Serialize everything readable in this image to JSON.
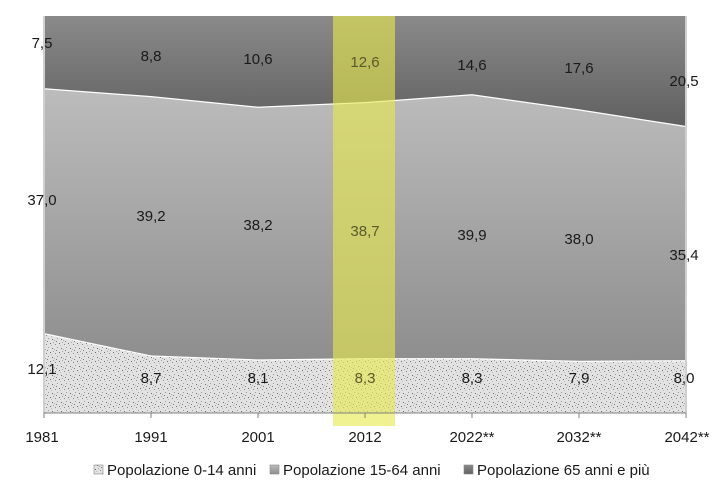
{
  "chart_data": {
    "type": "area",
    "stacked": true,
    "categories": [
      "1981",
      "1991",
      "2001",
      "2012",
      "2022**",
      "2032**",
      "2042**"
    ],
    "series": [
      {
        "name": "Popolazione 0-14 anni",
        "values": [
          12.1,
          8.7,
          8.1,
          8.3,
          8.3,
          7.9,
          8.0
        ],
        "labels": [
          "12,1",
          "8,7",
          "8,1",
          "8,3",
          "8,3",
          "7,9",
          "8,0"
        ],
        "color": "#e3e3e3",
        "pattern": "speckled"
      },
      {
        "name": "Popolazione 15-64 anni",
        "values": [
          37.0,
          39.2,
          38.2,
          38.7,
          39.9,
          38.0,
          35.4
        ],
        "labels": [
          "37,0",
          "39,2",
          "38,2",
          "38,7",
          "39,9",
          "38,0",
          "35,4"
        ],
        "color": "#a6a6a6"
      },
      {
        "name": "Popolazione 65 anni e più",
        "values": [
          7.5,
          8.8,
          10.6,
          12.6,
          14.6,
          17.6,
          20.5
        ],
        "labels": [
          "7,5",
          "8,8",
          "10,6",
          "12,6",
          "14,6",
          "17,6",
          "20,5"
        ],
        "color": "#6f6f6f"
      }
    ],
    "highlight_category": "2012",
    "highlight_color": "#e6e84d",
    "legend_position": "bottom",
    "y_axis_visible": false,
    "grid": false
  }
}
